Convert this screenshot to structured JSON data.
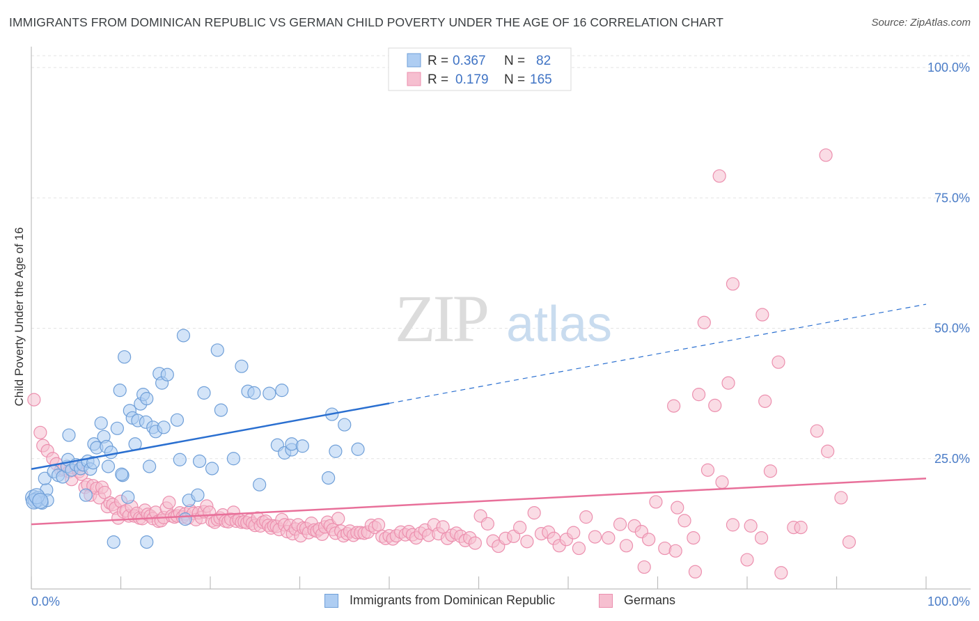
{
  "header": {
    "title": "IMMIGRANTS FROM DOMINICAN REPUBLIC VS GERMAN CHILD POVERTY UNDER THE AGE OF 16 CORRELATION CHART",
    "source": "Source: ZipAtlas.com"
  },
  "watermark": {
    "zip": "ZIP",
    "atlas": "atlas"
  },
  "colors": {
    "blue_fill": "#aecdf2",
    "blue_stroke": "#6f9fd8",
    "blue_line": "#2a6fd0",
    "pink_fill": "#f6bfd0",
    "pink_stroke": "#ec8fae",
    "pink_line": "#e8709a",
    "tick_label": "#4a7cc7",
    "grid": "#e3e3e3"
  },
  "legend": {
    "rows": [
      {
        "r_label": "R =",
        "r_value": "0.367",
        "n_label": "N =",
        "n_value": "82"
      },
      {
        "r_label": "R =",
        "r_value": "0.179",
        "n_label": "N =",
        "n_value": "165"
      }
    ]
  },
  "chart_data": {
    "type": "scatter",
    "title": "IMMIGRANTS FROM DOMINICAN REPUBLIC VS GERMAN CHILD POVERTY UNDER THE AGE OF 16 CORRELATION CHART",
    "xlabel": "",
    "ylabel": "Child Poverty Under the Age of 16",
    "xlim": [
      0,
      100
    ],
    "ylim": [
      0,
      100
    ],
    "x_tick_labels": [
      "0.0%",
      "100.0%"
    ],
    "y_tick_labels": [
      "100.0%",
      "75.0%",
      "50.0%",
      "25.0%"
    ],
    "y_ticks": [
      100,
      75,
      50,
      25
    ],
    "grid": true,
    "legend_position": "top-center",
    "series": [
      {
        "name": "Immigrants from Dominican Republic",
        "r": 0.367,
        "n": 82,
        "trend": {
          "x0": 0,
          "y0": 23.0,
          "x1": 40,
          "y1": 35.6,
          "dashed_to_x": 100,
          "dashed_to_y": 54.6
        },
        "points": [
          [
            0.2,
            17.5
          ],
          [
            0.5,
            17
          ],
          [
            0.8,
            17.3
          ],
          [
            1.2,
            16.5
          ],
          [
            1.7,
            19
          ],
          [
            1.8,
            17
          ],
          [
            1.5,
            21.2
          ],
          [
            2.5,
            22.5
          ],
          [
            3.0,
            21.8
          ],
          [
            3.5,
            21.5
          ],
          [
            4.0,
            23.5
          ],
          [
            4.1,
            24.8
          ],
          [
            4.2,
            29.5
          ],
          [
            4.5,
            22.8
          ],
          [
            5.0,
            23.8
          ],
          [
            5.5,
            23.1
          ],
          [
            5.8,
            23.8
          ],
          [
            6.1,
            18
          ],
          [
            6.3,
            24.5
          ],
          [
            6.6,
            23
          ],
          [
            7.0,
            27.8
          ],
          [
            7.3,
            27.1
          ],
          [
            7.8,
            31.8
          ],
          [
            8.1,
            29.2
          ],
          [
            8.4,
            27.3
          ],
          [
            8.6,
            23.5
          ],
          [
            8.9,
            26.2
          ],
          [
            9.2,
            9
          ],
          [
            9.6,
            30.8
          ],
          [
            9.9,
            38.1
          ],
          [
            10.2,
            21.8
          ],
          [
            10.4,
            44.5
          ],
          [
            10.8,
            17.6
          ],
          [
            11.0,
            34.2
          ],
          [
            11.3,
            32.8
          ],
          [
            11.6,
            27.8
          ],
          [
            11.9,
            32.3
          ],
          [
            12.2,
            35.5
          ],
          [
            12.5,
            37.3
          ],
          [
            12.8,
            32
          ],
          [
            12.9,
            36.5
          ],
          [
            12.9,
            9
          ],
          [
            13.2,
            23.5
          ],
          [
            13.6,
            31
          ],
          [
            13.9,
            30.2
          ],
          [
            14.3,
            41.3
          ],
          [
            14.6,
            39.5
          ],
          [
            14.8,
            31
          ],
          [
            15.2,
            41.1
          ],
          [
            16.3,
            32.4
          ],
          [
            16.6,
            24.8
          ],
          [
            17.0,
            48.6
          ],
          [
            17.2,
            13.4
          ],
          [
            17.6,
            17
          ],
          [
            18.6,
            18
          ],
          [
            18.8,
            24.5
          ],
          [
            19.3,
            37.6
          ],
          [
            20.2,
            23.1
          ],
          [
            20.8,
            45.8
          ],
          [
            21.2,
            34.3
          ],
          [
            22.6,
            25
          ],
          [
            23.5,
            42.7
          ],
          [
            24.2,
            37.9
          ],
          [
            24.9,
            37.6
          ],
          [
            25.5,
            20
          ],
          [
            26.6,
            37.5
          ],
          [
            27.5,
            27.6
          ],
          [
            28.0,
            38.1
          ],
          [
            28.3,
            26.1
          ],
          [
            29.1,
            26.7
          ],
          [
            29.1,
            27.8
          ],
          [
            30.3,
            27.4
          ],
          [
            33.2,
            21.3
          ],
          [
            33.6,
            33.5
          ],
          [
            34.0,
            26.4
          ],
          [
            35.0,
            31.5
          ],
          [
            36.5,
            26.8
          ],
          [
            0.3,
            16.8
          ],
          [
            0.6,
            17.8
          ],
          [
            1.0,
            16.9
          ],
          [
            6.9,
            24.2
          ],
          [
            10.1,
            22.0
          ]
        ]
      },
      {
        "name": "Germans",
        "r": 0.179,
        "n": 165,
        "trend": {
          "x0": 0,
          "y0": 12.4,
          "x1": 100,
          "y1": 21.2
        },
        "points": [
          [
            0.3,
            36.3
          ],
          [
            1.0,
            30
          ],
          [
            1.3,
            27.5
          ],
          [
            1.8,
            26.5
          ],
          [
            2.4,
            25
          ],
          [
            2.8,
            24
          ],
          [
            3.3,
            22.8
          ],
          [
            3.6,
            23
          ],
          [
            4.2,
            22.5
          ],
          [
            4.5,
            21
          ],
          [
            5.0,
            23.4
          ],
          [
            5.3,
            22.5
          ],
          [
            5.6,
            22
          ],
          [
            6.0,
            19.5
          ],
          [
            6.3,
            20
          ],
          [
            6.6,
            18
          ],
          [
            6.9,
            19.8
          ],
          [
            7.3,
            19.3
          ],
          [
            7.6,
            17.5
          ],
          [
            7.9,
            19.5
          ],
          [
            8.2,
            18.5
          ],
          [
            8.5,
            15.8
          ],
          [
            8.8,
            16.5
          ],
          [
            9.1,
            16.2
          ],
          [
            9.4,
            15.5
          ],
          [
            9.7,
            13.6
          ],
          [
            10.0,
            16.8
          ],
          [
            10.3,
            14.8
          ],
          [
            10.6,
            15
          ],
          [
            10.9,
            14
          ],
          [
            11.2,
            15.8
          ],
          [
            11.5,
            14
          ],
          [
            11.8,
            14.5
          ],
          [
            12.1,
            13.6
          ],
          [
            12.4,
            13.5
          ],
          [
            12.7,
            15.1
          ],
          [
            13.0,
            14.3
          ],
          [
            13.3,
            14
          ],
          [
            13.6,
            13.5
          ],
          [
            13.9,
            14.7
          ],
          [
            14.2,
            13
          ],
          [
            14.5,
            13.1
          ],
          [
            14.8,
            13.7
          ],
          [
            15.1,
            15.5
          ],
          [
            15.4,
            16.6
          ],
          [
            15.7,
            14
          ],
          [
            16.0,
            13.8
          ],
          [
            16.3,
            14
          ],
          [
            16.6,
            14.6
          ],
          [
            16.9,
            13.8
          ],
          [
            17.2,
            14.4
          ],
          [
            17.5,
            13.6
          ],
          [
            17.8,
            15
          ],
          [
            18.1,
            14.5
          ],
          [
            18.4,
            13.3
          ],
          [
            18.7,
            14.6
          ],
          [
            19.0,
            13.7
          ],
          [
            19.3,
            14.8
          ],
          [
            19.6,
            15.9
          ],
          [
            19.9,
            14.7
          ],
          [
            20.2,
            13.1
          ],
          [
            20.5,
            12.8
          ],
          [
            20.8,
            13.3
          ],
          [
            21.1,
            13.6
          ],
          [
            21.4,
            14.2
          ],
          [
            21.7,
            13
          ],
          [
            22.0,
            12.9
          ],
          [
            22.3,
            13.4
          ],
          [
            22.6,
            14.7
          ],
          [
            22.9,
            13
          ],
          [
            23.2,
            13.3
          ],
          [
            23.5,
            12.8
          ],
          [
            23.8,
            12.9
          ],
          [
            24.1,
            12.7
          ],
          [
            24.4,
            13.2
          ],
          [
            24.7,
            12.6
          ],
          [
            25.0,
            12.2
          ],
          [
            25.3,
            13.6
          ],
          [
            25.6,
            12.1
          ],
          [
            25.9,
            12.8
          ],
          [
            26.2,
            13
          ],
          [
            26.5,
            12.2
          ],
          [
            26.8,
            11.7
          ],
          [
            27.1,
            12.1
          ],
          [
            27.4,
            12
          ],
          [
            27.7,
            11.4
          ],
          [
            28.0,
            13.3
          ],
          [
            28.3,
            12.3
          ],
          [
            28.6,
            11
          ],
          [
            28.9,
            12.2
          ],
          [
            29.2,
            10.6
          ],
          [
            29.5,
            11.5
          ],
          [
            29.8,
            12.3
          ],
          [
            30.1,
            10.2
          ],
          [
            30.4,
            11.7
          ],
          [
            30.7,
            11.6
          ],
          [
            31.0,
            10.8
          ],
          [
            31.3,
            12.6
          ],
          [
            31.6,
            11.3
          ],
          [
            31.9,
            11.1
          ],
          [
            32.2,
            11.5
          ],
          [
            32.5,
            10.5
          ],
          [
            32.8,
            11.9
          ],
          [
            33.1,
            12.8
          ],
          [
            33.4,
            12.1
          ],
          [
            33.7,
            11.4
          ],
          [
            34.0,
            10.7
          ],
          [
            34.3,
            13.5
          ],
          [
            34.6,
            11.1
          ],
          [
            34.9,
            10.2
          ],
          [
            35.3,
            10.6
          ],
          [
            35.6,
            11.1
          ],
          [
            36.0,
            10.3
          ],
          [
            36.4,
            10.8
          ],
          [
            36.8,
            10.8
          ],
          [
            37.2,
            10.7
          ],
          [
            37.6,
            10.9
          ],
          [
            38.0,
            12.2
          ],
          [
            38.4,
            11.8
          ],
          [
            38.8,
            12.3
          ],
          [
            39.2,
            10.1
          ],
          [
            39.6,
            9.7
          ],
          [
            40.0,
            10.2
          ],
          [
            40.4,
            9.6
          ],
          [
            40.8,
            10.2
          ],
          [
            41.3,
            10.9
          ],
          [
            41.8,
            10.4
          ],
          [
            42.2,
            11
          ],
          [
            42.6,
            10.4
          ],
          [
            43.0,
            9.8
          ],
          [
            43.5,
            10.7
          ],
          [
            44.0,
            11.3
          ],
          [
            44.4,
            10.3
          ],
          [
            45.0,
            12.3
          ],
          [
            45.5,
            10.6
          ],
          [
            46.0,
            11.9
          ],
          [
            46.5,
            9.7
          ],
          [
            47.0,
            10.3
          ],
          [
            47.5,
            10.7
          ],
          [
            48.0,
            10.1
          ],
          [
            48.5,
            9.3
          ],
          [
            49.0,
            9.8
          ],
          [
            49.6,
            8.8
          ],
          [
            50.2,
            14
          ],
          [
            51.0,
            12.5
          ],
          [
            51.6,
            9.2
          ],
          [
            52.2,
            8.2
          ],
          [
            53.0,
            9.7
          ],
          [
            53.9,
            10.1
          ],
          [
            54.6,
            11.8
          ],
          [
            55.4,
            9.1
          ],
          [
            56.2,
            14.6
          ],
          [
            57.0,
            10.6
          ],
          [
            57.8,
            10.9
          ],
          [
            58.4,
            9.7
          ],
          [
            59.0,
            8.3
          ],
          [
            59.8,
            9.5
          ],
          [
            60.6,
            10.8
          ],
          [
            61.2,
            7.8
          ],
          [
            62.0,
            13.8
          ],
          [
            63.0,
            10
          ],
          [
            64.5,
            9.8
          ],
          [
            65.8,
            12.4
          ],
          [
            66.5,
            8.3
          ],
          [
            67.4,
            12.1
          ],
          [
            68.2,
            11
          ],
          [
            69.0,
            9.5
          ],
          [
            69.8,
            16.7
          ],
          [
            70.8,
            7.8
          ],
          [
            72.2,
            15.6
          ],
          [
            73.0,
            13.1
          ],
          [
            74.0,
            9.8
          ],
          [
            75.6,
            22.8
          ],
          [
            77.2,
            20.5
          ],
          [
            78.4,
            12.3
          ],
          [
            80.4,
            12.1
          ],
          [
            81.6,
            9.8
          ],
          [
            82.6,
            22.6
          ],
          [
            83.8,
            3.1
          ],
          [
            85.2,
            11.8
          ],
          [
            86.0,
            11.8
          ],
          [
            87.8,
            30.3
          ],
          [
            89.0,
            26.4
          ],
          [
            90.5,
            17.5
          ],
          [
            91.4,
            9
          ],
          [
            71.8,
            35.1
          ],
          [
            74.6,
            37.3
          ],
          [
            76.4,
            35.2
          ],
          [
            75.2,
            51.1
          ],
          [
            77.9,
            39.5
          ],
          [
            78.4,
            58.5
          ],
          [
            82.0,
            36
          ],
          [
            81.7,
            52.6
          ],
          [
            83.5,
            43.5
          ],
          [
            76.9,
            79.2
          ],
          [
            88.8,
            83.2
          ],
          [
            68.5,
            4.2
          ],
          [
            72.0,
            7.3
          ],
          [
            74.2,
            3.3
          ],
          [
            80.0,
            5.6
          ]
        ]
      }
    ]
  },
  "x_axis": {
    "left_label": "0.0%",
    "right_label": "100.0%"
  },
  "bottom_legend": {
    "items": [
      {
        "label": "Immigrants from Dominican Republic"
      },
      {
        "label": "Germans"
      }
    ]
  }
}
